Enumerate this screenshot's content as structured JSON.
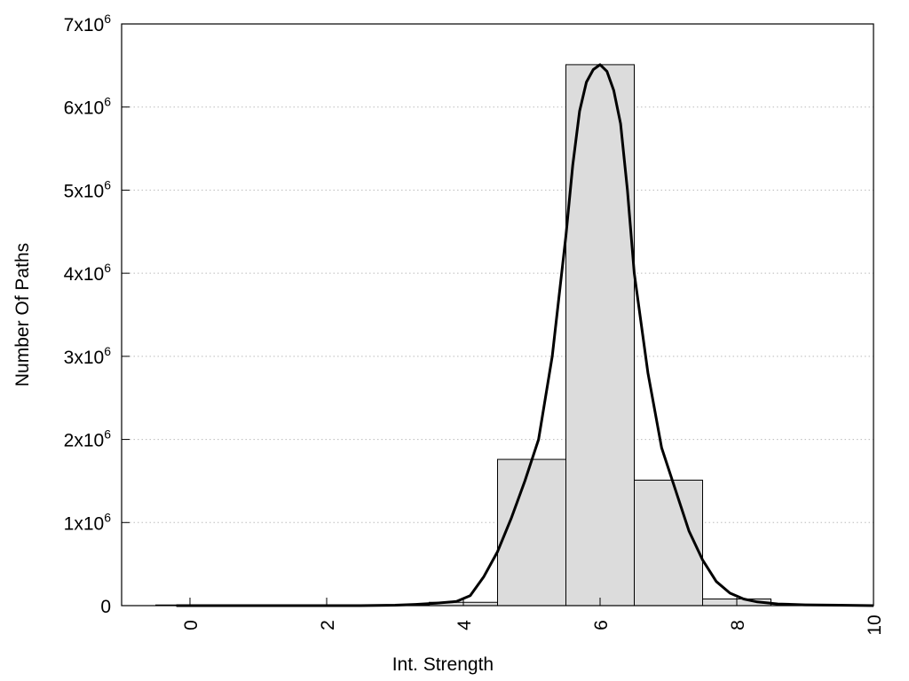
{
  "chart_data": {
    "type": "bar",
    "title": "",
    "xlabel": "Int. Strength",
    "ylabel": "Number Of Paths",
    "xlim": [
      -1,
      10
    ],
    "ylim": [
      0,
      7000000
    ],
    "grid": "y-dotted",
    "legend": "none",
    "bars": {
      "x": [
        0,
        1,
        2,
        3,
        4,
        5,
        6,
        7,
        8
      ],
      "values": [
        8000,
        5000,
        5000,
        10000,
        40000,
        1760000,
        6510000,
        1510000,
        80000
      ],
      "fill": "#dcdcdc",
      "stroke": "#000000"
    },
    "curve": {
      "x": [
        -0.2,
        0.5,
        1,
        1.5,
        2,
        2.5,
        3,
        3.3,
        3.6,
        3.9,
        4.1,
        4.3,
        4.5,
        4.7,
        4.9,
        5.1,
        5.3,
        5.5,
        5.6,
        5.7,
        5.8,
        5.9,
        6,
        6.1,
        6.2,
        6.3,
        6.4,
        6.5,
        6.7,
        6.9,
        7.1,
        7.3,
        7.5,
        7.7,
        7.9,
        8.1,
        8.3,
        8.6,
        9,
        9.5,
        10
      ],
      "values": [
        0,
        0,
        0,
        0,
        0,
        0,
        5000,
        15000,
        30000,
        50000,
        120000,
        350000,
        650000,
        1050000,
        1500000,
        2000000,
        3000000,
        4450000,
        5300000,
        5950000,
        6300000,
        6450000,
        6510000,
        6430000,
        6200000,
        5800000,
        5000000,
        4000000,
        2800000,
        1900000,
        1400000,
        900000,
        550000,
        290000,
        150000,
        80000,
        45000,
        20000,
        10000,
        5000,
        0
      ],
      "color": "#000000"
    },
    "x_ticks": [
      "0",
      "2",
      "4",
      "6",
      "8",
      "10"
    ],
    "x_tick_values": [
      0,
      2,
      4,
      6,
      8,
      10
    ],
    "y_ticks": [
      "0",
      "1x10",
      "2x10",
      "3x10",
      "4x10",
      "5x10",
      "6x10",
      "7x10"
    ],
    "y_tick_exponent": "6",
    "y_tick_values": [
      0,
      1000000,
      2000000,
      3000000,
      4000000,
      5000000,
      6000000,
      7000000
    ]
  }
}
